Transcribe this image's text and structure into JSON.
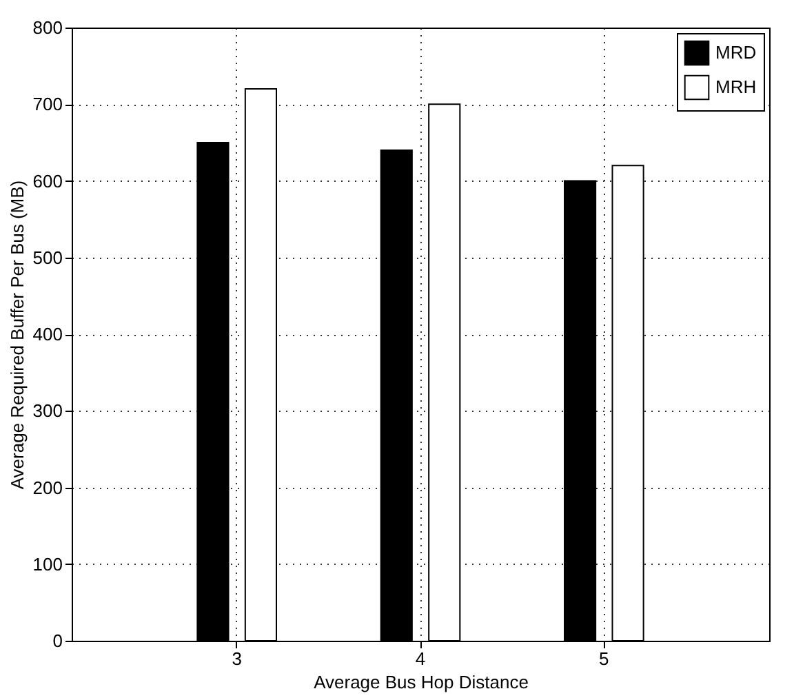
{
  "chart_data": {
    "type": "bar",
    "xlabel": "Average Bus Hop Distance",
    "ylabel": "Average Required Buffer Per Bus (MB)",
    "categories": [
      "3",
      "4",
      "5"
    ],
    "series": [
      {
        "name": "MRD",
        "color": "#000000",
        "values": [
          650,
          640,
          600
        ]
      },
      {
        "name": "MRH",
        "color": "#ffffff",
        "values": [
          720,
          700,
          620
        ]
      }
    ],
    "ylim": [
      0,
      800
    ],
    "yticks": [
      0,
      100,
      200,
      300,
      400,
      500,
      600,
      700,
      800
    ],
    "grid": true,
    "legend": "top right"
  }
}
